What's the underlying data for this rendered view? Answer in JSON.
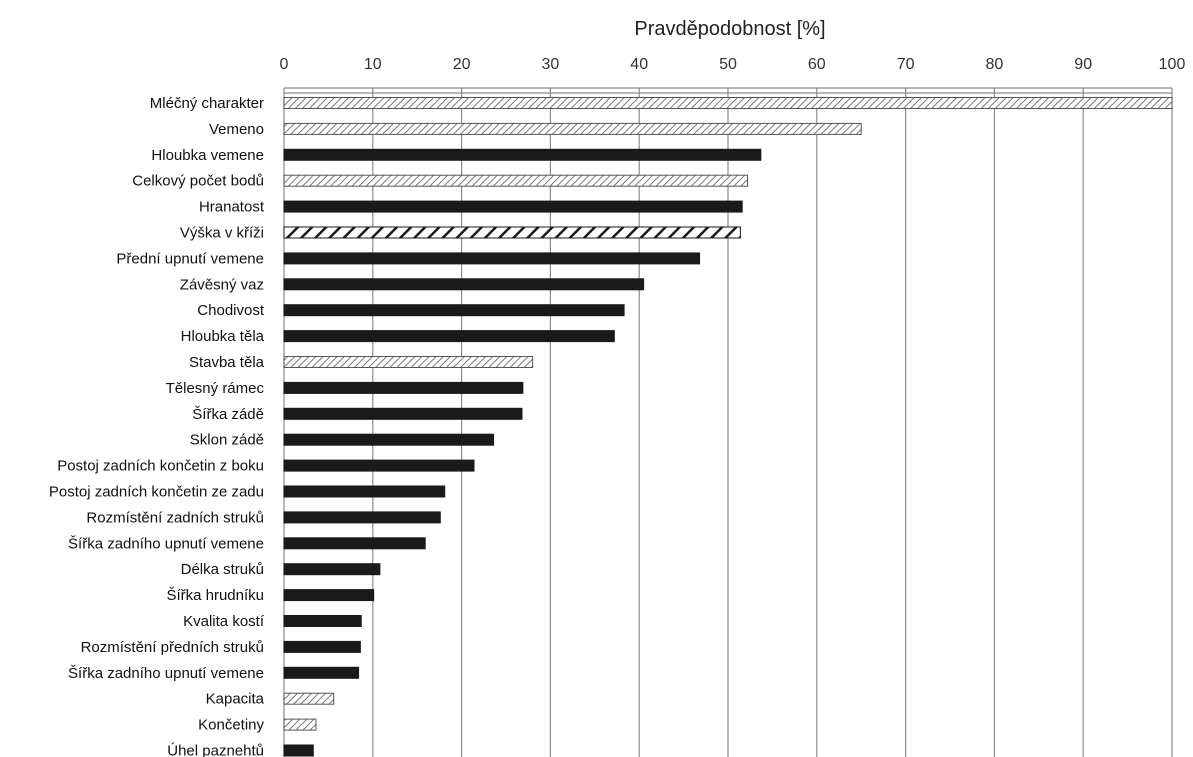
{
  "chart_data": {
    "type": "bar",
    "orientation": "horizontal",
    "title": "",
    "xlabel": "Pravděpodobnost [%]",
    "ylabel": "",
    "xlim": [
      0,
      100
    ],
    "x_axis_position": "top",
    "grid": true,
    "ticks": [
      "0",
      "10",
      "20",
      "30",
      "40",
      "50",
      "60",
      "70",
      "80",
      "90",
      "100"
    ],
    "categories": [
      "Mléčný charakter",
      "Vemeno",
      "Hloubka vemene",
      "Celkový počet bodů",
      "Hranatost",
      "Výška v kříži",
      "Přední upnutí vemene",
      "Závěsný vaz",
      "Chodivost",
      "Hloubka těla",
      "Stavba těla",
      "Tělesný rámec",
      "Šířka zádě",
      "Sklon zádě",
      "Postoj zadních končetin z boku",
      "Postoj zadních končetin ze zadu",
      "Rozmístění zadních struků",
      "Šířka zadního upnutí vemene",
      "Délka struků",
      "Šířka hrudníku",
      "Kvalita kostí",
      "Rozmístění předních struků",
      "Šířka zadního upnutí vemene",
      "Kapacita",
      "Končetiny",
      "Úhel paznehtů"
    ],
    "values": [
      100,
      65,
      53.7,
      52.2,
      51.6,
      51.4,
      46.8,
      40.5,
      38.3,
      37.2,
      28,
      26.9,
      26.8,
      23.6,
      21.4,
      18.1,
      17.6,
      15.9,
      10.8,
      10.1,
      8.7,
      8.6,
      8.4,
      5.6,
      3.6,
      3.3
    ],
    "patterns": [
      "hatch",
      "hatch",
      "solid",
      "hatch",
      "solid",
      "bold-hatch",
      "solid",
      "solid",
      "solid",
      "solid",
      "hatch",
      "solid",
      "solid",
      "solid",
      "solid",
      "solid",
      "solid",
      "solid",
      "solid",
      "solid",
      "solid",
      "solid",
      "solid",
      "hatch",
      "hatch",
      "solid"
    ],
    "colors": {
      "solid": "#1a1a1a",
      "hatch_bg": "#ffffff",
      "hatch_line": "#777777",
      "bold_hatch_line": "#1a1a1a",
      "grid": "#8a8a8a",
      "text": "#111111"
    }
  }
}
